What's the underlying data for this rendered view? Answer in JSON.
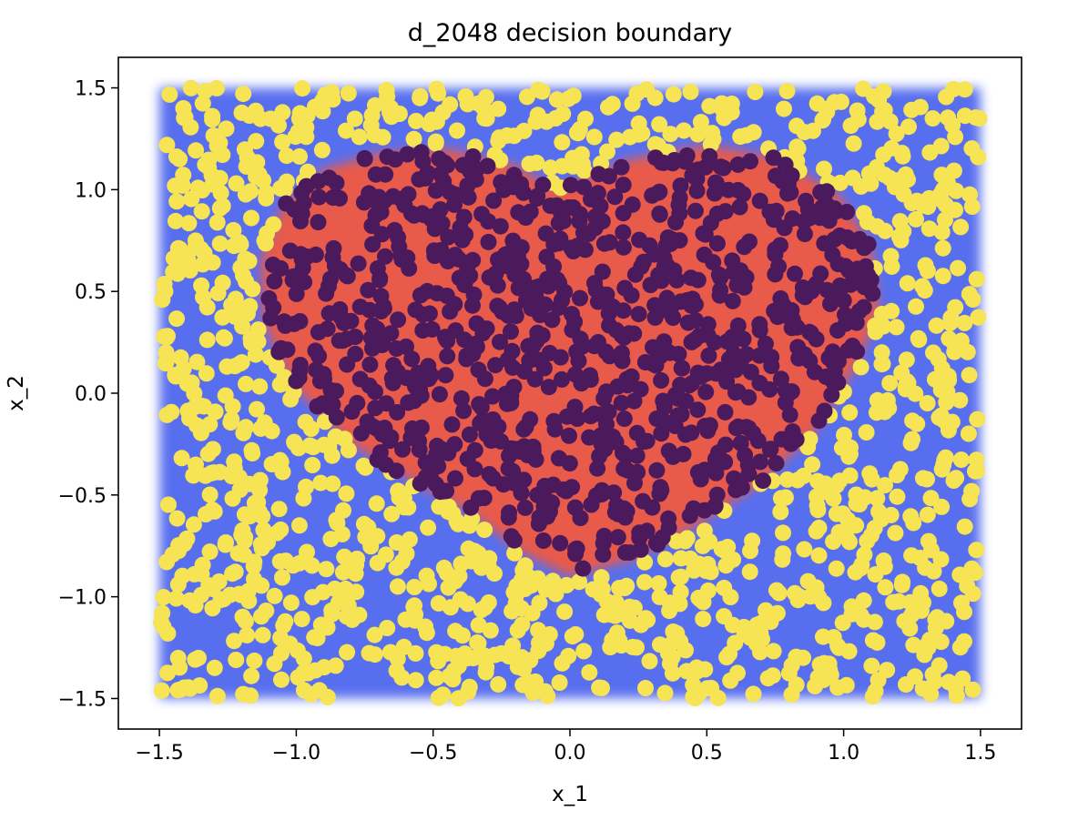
{
  "chart_data": {
    "type": "scatter",
    "title": "d_2048 decision boundary",
    "xlabel": "x_1",
    "ylabel": "x_2",
    "xlim": [
      -1.65,
      1.65
    ],
    "ylim": [
      -1.65,
      1.65
    ],
    "grid": false,
    "legend": "none",
    "x_ticks": [
      {
        "value": -1.5,
        "label": "−1.5"
      },
      {
        "value": -1.0,
        "label": "−1.0"
      },
      {
        "value": -0.5,
        "label": "−0.5"
      },
      {
        "value": 0.0,
        "label": "0.0"
      },
      {
        "value": 0.5,
        "label": "0.5"
      },
      {
        "value": 1.0,
        "label": "1.0"
      },
      {
        "value": 1.5,
        "label": "1.5"
      }
    ],
    "y_ticks": [
      {
        "value": -1.5,
        "label": "−1.5"
      },
      {
        "value": -1.0,
        "label": "−1.0"
      },
      {
        "value": -0.5,
        "label": "−0.5"
      },
      {
        "value": 0.0,
        "label": "0.0"
      },
      {
        "value": 0.5,
        "label": "0.5"
      },
      {
        "value": 1.0,
        "label": "1.0"
      },
      {
        "value": 1.5,
        "label": "1.5"
      }
    ],
    "decision_region": {
      "domain_x": [
        -1.5,
        1.5
      ],
      "domain_y": [
        -1.5,
        1.5
      ],
      "outside_color": "#4f67ee",
      "inside_color": "#e85a4a",
      "boundary_outline": [
        [
          -0.05,
          1.0
        ],
        [
          -0.2,
          1.12
        ],
        [
          -0.45,
          1.2
        ],
        [
          -0.7,
          1.18
        ],
        [
          -0.9,
          1.1
        ],
        [
          -1.05,
          0.92
        ],
        [
          -1.13,
          0.65
        ],
        [
          -1.12,
          0.35
        ],
        [
          -1.02,
          0.05
        ],
        [
          -0.8,
          -0.25
        ],
        [
          -0.55,
          -0.45
        ],
        [
          -0.35,
          -0.6
        ],
        [
          -0.18,
          -0.78
        ],
        [
          0.0,
          -0.9
        ],
        [
          0.22,
          -0.82
        ],
        [
          0.45,
          -0.66
        ],
        [
          0.7,
          -0.44
        ],
        [
          0.9,
          -0.18
        ],
        [
          1.04,
          0.12
        ],
        [
          1.13,
          0.4
        ],
        [
          1.1,
          0.72
        ],
        [
          0.98,
          0.98
        ],
        [
          0.75,
          1.16
        ],
        [
          0.5,
          1.22
        ],
        [
          0.22,
          1.15
        ],
        [
          -0.05,
          1.0
        ]
      ]
    },
    "series": [
      {
        "class": "inside",
        "color": "#4b1a5c",
        "points_per_class": 900
      },
      {
        "class": "outside",
        "color": "#f7e455",
        "points_per_class": 1148
      }
    ],
    "sample_seed": 2048
  }
}
